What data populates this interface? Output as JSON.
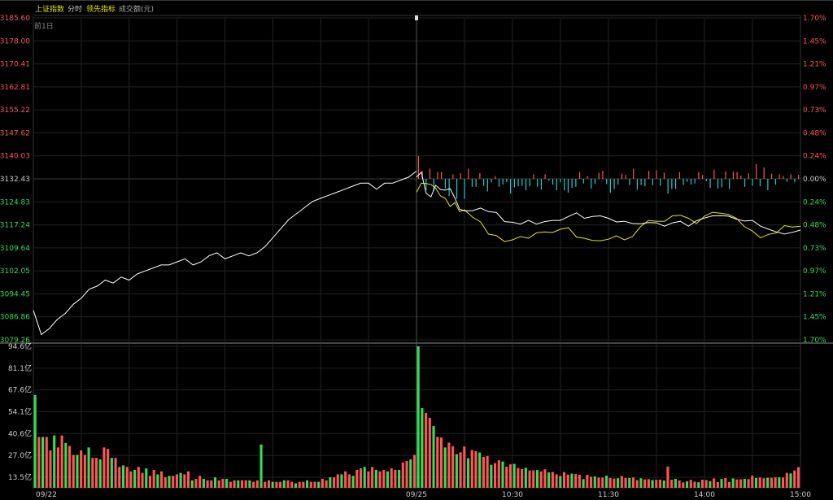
{
  "header": {
    "index_name": "上证指数",
    "mode": "分时",
    "indicator": "领先指标",
    "volume_label": "成交额(元)"
  },
  "colors": {
    "up": "#ff5555",
    "down": "#33dd55",
    "neutral": "#cccccc",
    "price_line": "#ffffff",
    "leading_line": "#e6e600",
    "breadth_up": "#ff5555",
    "breadth_down": "#22cccc",
    "grid": "#222222",
    "border": "#333333"
  },
  "chart_data": {
    "type": "line",
    "annotation_prev_day": "前1日",
    "price_axis": {
      "ticks": [
        "3185.60",
        "3178.00",
        "3170.41",
        "3162.81",
        "3155.22",
        "3147.62",
        "3140.03",
        "3132.43",
        "3124.83",
        "3117.24",
        "3109.64",
        "3102.05",
        "3094.45",
        "3086.86",
        "3079.26"
      ],
      "ylim": [
        3079.26,
        3185.6
      ],
      "prev_close": 3132.43
    },
    "pct_axis": {
      "ticks": [
        "1.70%",
        "1.45%",
        "1.21%",
        "0.97%",
        "0.73%",
        "0.48%",
        "0.24%",
        "0.00%",
        "0.24%",
        "0.48%",
        "0.73%",
        "0.97%",
        "1.21%",
        "1.45%",
        "1.70%"
      ]
    },
    "volume_axis": {
      "ticks": [
        "94.6亿",
        "81.1亿",
        "67.6亿",
        "54.1亿",
        "40.6亿",
        "27.0亿",
        "13.5亿"
      ],
      "ylim": [
        0,
        94.6
      ],
      "unit": "亿"
    },
    "x_ticks": [
      "09/22",
      "09/25",
      "10:30",
      "11:30",
      "14:00",
      "15:00"
    ],
    "day1_price": [
      [
        0,
        3089
      ],
      [
        5,
        3081
      ],
      [
        10,
        3083
      ],
      [
        15,
        3086
      ],
      [
        20,
        3088
      ],
      [
        25,
        3091
      ],
      [
        30,
        3093
      ],
      [
        35,
        3096
      ],
      [
        40,
        3097
      ],
      [
        45,
        3099
      ],
      [
        50,
        3098
      ],
      [
        55,
        3100
      ],
      [
        60,
        3099
      ],
      [
        65,
        3101
      ],
      [
        70,
        3102
      ],
      [
        75,
        3103
      ],
      [
        80,
        3104
      ],
      [
        85,
        3104
      ],
      [
        90,
        3105
      ],
      [
        95,
        3106
      ],
      [
        100,
        3104
      ],
      [
        105,
        3105
      ],
      [
        110,
        3107
      ],
      [
        115,
        3108
      ],
      [
        120,
        3106
      ],
      [
        125,
        3107
      ],
      [
        130,
        3108
      ],
      [
        135,
        3107
      ],
      [
        140,
        3108
      ],
      [
        145,
        3110
      ],
      [
        150,
        3113
      ],
      [
        155,
        3116
      ],
      [
        160,
        3119
      ],
      [
        165,
        3121
      ],
      [
        170,
        3123
      ],
      [
        175,
        3125
      ],
      [
        180,
        3126
      ],
      [
        185,
        3127
      ],
      [
        190,
        3128
      ],
      [
        195,
        3129
      ],
      [
        200,
        3130
      ],
      [
        205,
        3131
      ],
      [
        210,
        3131
      ],
      [
        215,
        3129
      ],
      [
        220,
        3131
      ],
      [
        225,
        3131
      ],
      [
        230,
        3132
      ],
      [
        235,
        3133
      ],
      [
        240,
        3135
      ]
    ],
    "day2_price": [
      [
        0,
        3133.0
      ],
      [
        3,
        3134.6
      ],
      [
        6,
        3127.7
      ],
      [
        9,
        3126.5
      ],
      [
        12,
        3130.3
      ],
      [
        15,
        3128.9
      ],
      [
        18,
        3128.7
      ],
      [
        21,
        3129.2
      ],
      [
        24,
        3126.1
      ],
      [
        27,
        3122.4
      ],
      [
        30,
        3121.9
      ],
      [
        35,
        3121.9
      ],
      [
        40,
        3122.8
      ],
      [
        45,
        3121.6
      ],
      [
        50,
        3121.3
      ],
      [
        55,
        3118.3
      ],
      [
        60,
        3118.1
      ],
      [
        65,
        3117.5
      ],
      [
        70,
        3118.7
      ],
      [
        75,
        3117.5
      ],
      [
        80,
        3118.3
      ],
      [
        85,
        3118.7
      ],
      [
        90,
        3118.7
      ],
      [
        95,
        3120.0
      ],
      [
        100,
        3121.2
      ],
      [
        105,
        3119.4
      ],
      [
        110,
        3120.0
      ],
      [
        115,
        3120.2
      ],
      [
        120,
        3119.4
      ],
      [
        125,
        3118.2
      ],
      [
        130,
        3118.4
      ],
      [
        135,
        3117.7
      ],
      [
        140,
        3117.6
      ],
      [
        145,
        3118.0
      ],
      [
        150,
        3117.9
      ],
      [
        155,
        3116.8
      ],
      [
        160,
        3117.9
      ],
      [
        165,
        3118.4
      ],
      [
        170,
        3116.8
      ],
      [
        175,
        3118.6
      ],
      [
        180,
        3119.5
      ],
      [
        185,
        3120.2
      ],
      [
        190,
        3120.3
      ],
      [
        195,
        3120.1
      ],
      [
        200,
        3119.1
      ],
      [
        205,
        3118.5
      ],
      [
        210,
        3118.7
      ],
      [
        215,
        3116.8
      ],
      [
        220,
        3115.8
      ],
      [
        225,
        3114.9
      ],
      [
        230,
        3114.2
      ],
      [
        235,
        3114.8
      ],
      [
        240,
        3115.5
      ]
    ],
    "day2_leading": [
      [
        0,
        3128.0
      ],
      [
        3,
        3131.0
      ],
      [
        6,
        3130.9
      ],
      [
        9,
        3130.6
      ],
      [
        12,
        3129.3
      ],
      [
        15,
        3126.8
      ],
      [
        18,
        3126.0
      ],
      [
        21,
        3123.3
      ],
      [
        24,
        3124.6
      ],
      [
        27,
        3121.6
      ],
      [
        30,
        3122.2
      ],
      [
        35,
        3119.8
      ],
      [
        40,
        3118.2
      ],
      [
        45,
        3114.2
      ],
      [
        50,
        3113.7
      ],
      [
        55,
        3111.7
      ],
      [
        60,
        3112.3
      ],
      [
        65,
        3113.4
      ],
      [
        70,
        3112.8
      ],
      [
        75,
        3114.6
      ],
      [
        80,
        3114.9
      ],
      [
        85,
        3114.7
      ],
      [
        90,
        3115.8
      ],
      [
        95,
        3116.3
      ],
      [
        100,
        3113.2
      ],
      [
        105,
        3112.8
      ],
      [
        110,
        3112.1
      ],
      [
        115,
        3112.0
      ],
      [
        120,
        3112.5
      ],
      [
        125,
        3113.6
      ],
      [
        130,
        3112.3
      ],
      [
        135,
        3113.4
      ],
      [
        140,
        3116.6
      ],
      [
        145,
        3118.7
      ],
      [
        150,
        3118.4
      ],
      [
        155,
        3118.4
      ],
      [
        160,
        3120.2
      ],
      [
        165,
        3120.4
      ],
      [
        170,
        3119.4
      ],
      [
        175,
        3117.7
      ],
      [
        180,
        3120.1
      ],
      [
        185,
        3121.4
      ],
      [
        190,
        3121.1
      ],
      [
        195,
        3120.7
      ],
      [
        200,
        3119.4
      ],
      [
        205,
        3116.6
      ],
      [
        210,
        3115.2
      ],
      [
        215,
        3113.0
      ],
      [
        220,
        3114.1
      ],
      [
        225,
        3114.6
      ],
      [
        230,
        3117.0
      ],
      [
        235,
        3116.5
      ],
      [
        240,
        3116.8
      ]
    ],
    "volume_day1": [
      62,
      34,
      34,
      34,
      25,
      35,
      27,
      35,
      30,
      28,
      22,
      22,
      25,
      22,
      27,
      20,
      20,
      19,
      27,
      26,
      20,
      20,
      14,
      15,
      14,
      11,
      12,
      14,
      10,
      13,
      8,
      12,
      9,
      11,
      7,
      8,
      8,
      9,
      10,
      9,
      11,
      5,
      6,
      8,
      6,
      5,
      5,
      7,
      5,
      6,
      6,
      4,
      5,
      5,
      5,
      5,
      5,
      4,
      5,
      29,
      4,
      5,
      4,
      4,
      4,
      5,
      5,
      4,
      3,
      4,
      4,
      5,
      4,
      4,
      4,
      6,
      5,
      7,
      7,
      9,
      9,
      11,
      9,
      8,
      12,
      13,
      14,
      11,
      14,
      12,
      11,
      12,
      11,
      13,
      12,
      12,
      17,
      18,
      19,
      22
    ],
    "volume_day2": [
      94.6,
      53.3,
      50.0,
      46.7,
      41.3,
      34.1,
      33.6,
      27.0,
      30.2,
      27.8,
      22.5,
      23.7,
      27.6,
      19.8,
      25.3,
      24.5,
      23.6,
      20.7,
      21.3,
      15.4,
      16.5,
      18.4,
      17.6,
      14.1,
      15.7,
      16.0,
      13.2,
      12.5,
      13.4,
      11.6,
      11.7,
      11.9,
      11.0,
      12.4,
      10.3,
      10.6,
      9.0,
      7.9,
      10.5,
      8.8,
      9.5,
      9.2,
      8.7,
      5.8,
      8.7,
      7.4,
      7.6,
      6.8,
      6.8,
      8.1,
      6.6,
      6.2,
      6.4,
      7.9,
      6.6,
      6.6,
      6.9,
      5.2,
      6.4,
      5.6,
      5.8,
      5.2,
      5.4,
      5.5,
      4.9,
      14.2,
      5.4,
      6.0,
      4.9,
      3.6,
      4.3,
      5.3,
      4.1,
      3.7,
      5.4,
      5.2,
      4.4,
      6.3,
      3.9,
      5.9,
      6.5,
      3.9,
      6.3,
      5.6,
      5.7,
      6.0,
      5.8,
      8.1,
      6.6,
      6.9,
      6.4,
      6.7,
      6.7,
      7.0,
      7.0,
      6.8,
      10.0,
      9.6,
      11.6,
      13.8
    ],
    "breadth": [
      40,
      14,
      -20,
      18,
      -21,
      12,
      12,
      -17,
      -30,
      8,
      -35,
      10,
      -35,
      18,
      -14,
      -14,
      10,
      -12,
      -22,
      -6,
      5,
      -14,
      -10,
      -6,
      -26,
      -15,
      -13,
      -12,
      -20,
      -13,
      8,
      -14,
      -19,
      8,
      -3,
      -10,
      -20,
      -6,
      -20,
      -24,
      -16,
      -14,
      12,
      -8,
      5,
      -17,
      -9,
      11,
      14,
      -9,
      -24,
      -18,
      -10,
      9,
      7,
      -11,
      18,
      -19,
      -11,
      -13,
      14,
      -11,
      15,
      -12,
      11,
      -26,
      -18,
      -18,
      12,
      -11,
      -5,
      -10,
      -8,
      12,
      7,
      -4,
      -16,
      16,
      -17,
      -15,
      13,
      -18,
      13,
      12,
      6,
      -14,
      10,
      -12,
      26,
      -13,
      20,
      -20,
      9,
      -10,
      8,
      5,
      -5,
      8,
      -6,
      7
    ]
  }
}
